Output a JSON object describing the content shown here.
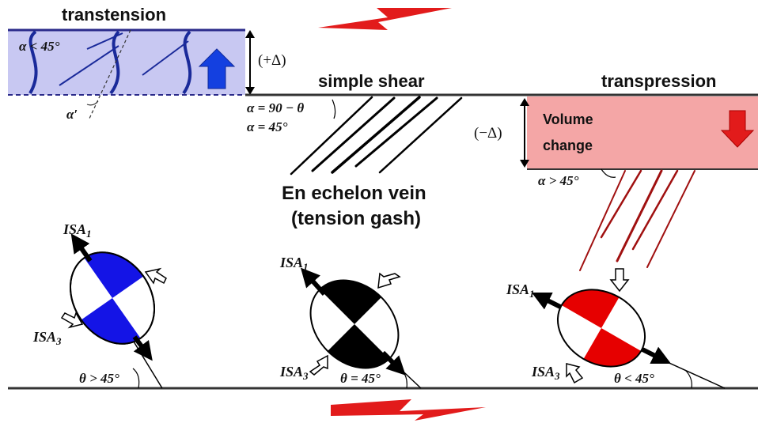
{
  "titles": {
    "transtension": "transtension",
    "simple_shear": "simple shear",
    "transpression": "transpression"
  },
  "labels": {
    "alpha_lt_45": "α < 45°",
    "alpha_prime": "α′",
    "plus_delta": "(+Δ)",
    "minus_delta": "(−Δ)",
    "alpha_90_theta": "α = 90 − θ",
    "alpha_eq_45": "α = 45°",
    "alpha_gt_45": "α > 45°",
    "volume_change_1": "Volume",
    "volume_change_2": "change",
    "en_echelon_1": "En echelon vein",
    "en_echelon_2": "(tension gash)",
    "theta_gt_45": "θ > 45°",
    "theta_eq_45": "θ = 45°",
    "theta_lt_45": "θ < 45°",
    "isa_main": "ISA",
    "isa1_sub": "1",
    "isa3_sub": "3"
  },
  "colors": {
    "transtension_fill": "#c8c8f2",
    "transtension_border": "#2a2a8a",
    "transpression_fill": "#f4a6a6",
    "arrow_red": "#e21b1b",
    "blue": "#1414e6",
    "red": "#e60000",
    "black": "#000000",
    "vein_red": "#a01010"
  },
  "icons": [
    "shear-arrow-icon",
    "up-arrow-icon",
    "down-arrow-icon",
    "isa-arrow-icon",
    "compression-arrow-icon"
  ]
}
